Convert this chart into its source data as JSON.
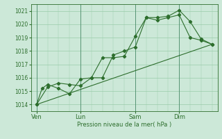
{
  "bg_color": "#cce8d8",
  "grid_color": "#99ccaa",
  "line_color": "#2d6e2d",
  "ylabel_ticks": [
    1014,
    1015,
    1016,
    1017,
    1018,
    1019,
    1020,
    1021
  ],
  "xlabel": "Pression niveau de la mer( hPa )",
  "xtick_labels": [
    "Ven",
    "Lun",
    "Sam",
    "Dim"
  ],
  "xtick_positions": [
    0,
    4,
    9,
    13
  ],
  "vline_positions": [
    0,
    4,
    9,
    13
  ],
  "line1_x": [
    0,
    0.5,
    1,
    2,
    3,
    4,
    5,
    6,
    7,
    8,
    9,
    10,
    11,
    12,
    13,
    14,
    15,
    16
  ],
  "line1_y": [
    1014.0,
    1015.2,
    1015.5,
    1015.2,
    1014.8,
    1015.9,
    1016.0,
    1017.5,
    1017.5,
    1017.6,
    1019.1,
    1020.5,
    1020.3,
    1020.5,
    1020.7,
    1019.0,
    1018.8,
    1018.5
  ],
  "line2_x": [
    0,
    1,
    2,
    3,
    4,
    5,
    6,
    7,
    8,
    9,
    10,
    11,
    12,
    13,
    14,
    15,
    16
  ],
  "line2_y": [
    1014.0,
    1015.3,
    1015.6,
    1015.5,
    1015.4,
    1016.0,
    1016.0,
    1017.7,
    1018.0,
    1018.3,
    1020.5,
    1020.5,
    1020.6,
    1021.05,
    1020.2,
    1018.9,
    1018.5
  ],
  "line3_x": [
    0,
    16
  ],
  "line3_y": [
    1014.0,
    1018.5
  ],
  "ylim": [
    1013.5,
    1021.5
  ],
  "xlim": [
    -0.5,
    16.5
  ]
}
